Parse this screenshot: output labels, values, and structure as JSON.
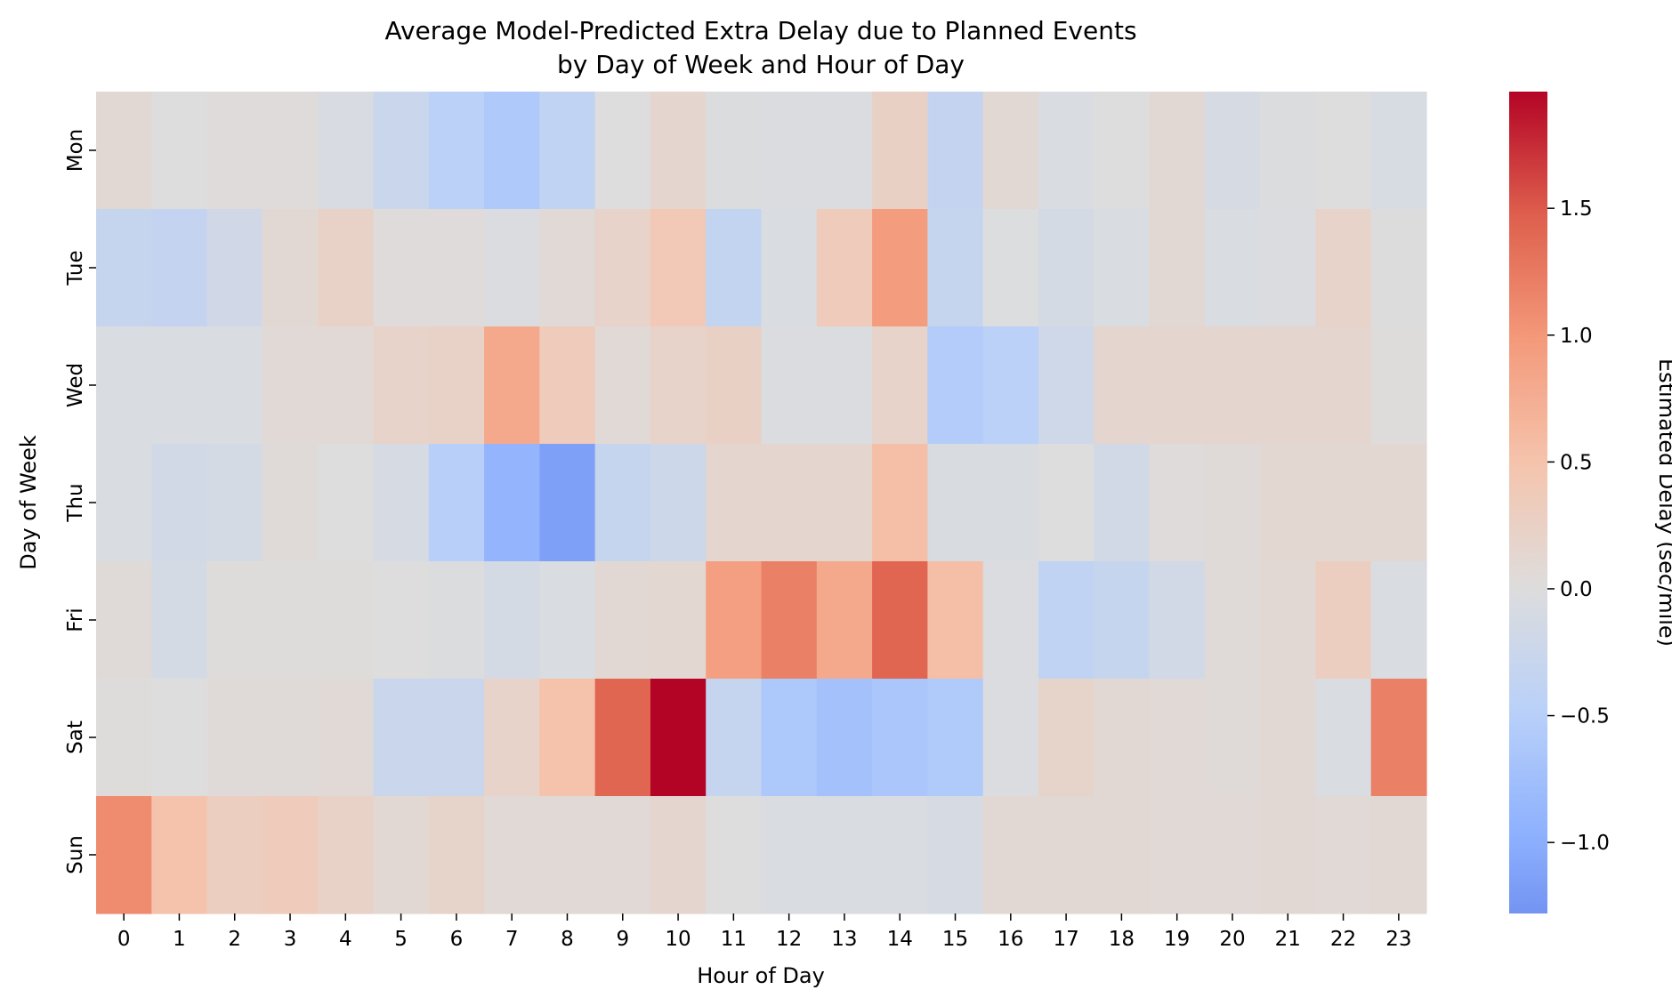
{
  "chart_data": {
    "type": "heatmap",
    "title": "Average Model-Predicted Extra Delay due to Planned Events\nby Day of Week and Hour of Day",
    "xlabel": "Hour of Day",
    "ylabel": "Day of Week",
    "colorbar_label": "Estimated Delay (sec/mile)",
    "colormap": "coolwarm",
    "color_center": 0.0,
    "vmin": -1.28,
    "vmax": 1.96,
    "colorbar_ticks": [
      -1.0,
      -0.5,
      0.0,
      0.5,
      1.0,
      1.5
    ],
    "colorbar_tick_labels": [
      "−1.0",
      "−0.5",
      "0.0",
      "0.5",
      "1.0",
      "1.5"
    ],
    "x": [
      "0",
      "1",
      "2",
      "3",
      "4",
      "5",
      "6",
      "7",
      "8",
      "9",
      "10",
      "11",
      "12",
      "13",
      "14",
      "15",
      "16",
      "17",
      "18",
      "19",
      "20",
      "21",
      "22",
      "23"
    ],
    "y": [
      "Mon",
      "Tue",
      "Wed",
      "Thu",
      "Fri",
      "Sat",
      "Sun"
    ],
    "values": [
      [
        0.1,
        0.0,
        0.03,
        0.03,
        -0.07,
        -0.25,
        -0.45,
        -0.6,
        -0.37,
        0.0,
        0.15,
        -0.02,
        -0.04,
        -0.03,
        0.25,
        -0.33,
        0.1,
        -0.05,
        0.0,
        0.1,
        -0.1,
        -0.02,
        0.0,
        -0.08
      ],
      [
        -0.3,
        -0.33,
        -0.17,
        0.1,
        0.22,
        0.03,
        0.03,
        -0.03,
        0.08,
        0.2,
        0.4,
        -0.35,
        -0.05,
        0.35,
        0.95,
        -0.3,
        -0.01,
        -0.12,
        -0.05,
        0.1,
        -0.05,
        -0.03,
        0.2,
        0.01
      ],
      [
        -0.05,
        -0.05,
        -0.05,
        0.07,
        0.08,
        0.2,
        0.22,
        0.8,
        0.35,
        0.07,
        0.2,
        0.25,
        -0.03,
        -0.03,
        0.2,
        -0.55,
        -0.45,
        -0.2,
        0.15,
        0.15,
        0.15,
        0.15,
        0.15,
        0.02
      ],
      [
        -0.05,
        -0.15,
        -0.12,
        0.05,
        0.0,
        -0.1,
        -0.5,
        -0.9,
        -1.15,
        -0.3,
        -0.22,
        0.15,
        0.15,
        0.15,
        0.55,
        -0.06,
        -0.06,
        0.0,
        -0.15,
        0.03,
        0.05,
        0.12,
        0.12,
        0.12
      ],
      [
        0.05,
        -0.12,
        0.02,
        0.02,
        0.02,
        0.0,
        -0.02,
        -0.12,
        -0.05,
        0.1,
        0.12,
        0.92,
        1.2,
        0.8,
        1.42,
        0.55,
        -0.03,
        -0.38,
        -0.3,
        -0.15,
        0.05,
        0.1,
        0.3,
        -0.05
      ],
      [
        0.02,
        0.0,
        0.05,
        0.05,
        0.08,
        -0.25,
        -0.25,
        0.2,
        0.5,
        1.42,
        1.96,
        -0.32,
        -0.62,
        -0.72,
        -0.65,
        -0.58,
        -0.03,
        0.18,
        0.1,
        0.07,
        0.05,
        0.1,
        -0.05,
        1.2
      ],
      [
        1.1,
        0.5,
        0.3,
        0.35,
        0.22,
        0.1,
        0.18,
        0.07,
        0.07,
        0.07,
        0.15,
        0.0,
        -0.05,
        -0.05,
        -0.05,
        -0.1,
        0.1,
        0.1,
        0.1,
        0.07,
        0.07,
        0.1,
        0.07,
        0.1
      ]
    ]
  }
}
